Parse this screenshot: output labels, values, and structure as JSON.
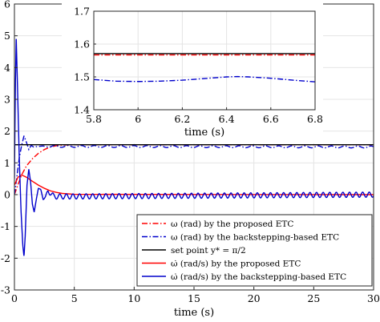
{
  "chart_data": [
    {
      "type": "line",
      "title": "",
      "xlabel": "time (s)",
      "ylabel": "",
      "xlim": [
        0,
        30
      ],
      "ylim": [
        -3,
        6
      ],
      "xticks": [
        0,
        5,
        10,
        15,
        20,
        25,
        30
      ],
      "yticks": [
        -3,
        -2,
        -1,
        0,
        1,
        2,
        3,
        4,
        5,
        6
      ],
      "grid": true,
      "legend_position": "bottom-right",
      "series": [
        {
          "name": "ω (rad) by the proposed ETC",
          "color": "#ff0000",
          "style": "dash-dot",
          "points": [
            [
              0,
              0
            ],
            [
              0.3,
              0.32
            ],
            [
              0.6,
              0.62
            ],
            [
              1.0,
              0.9
            ],
            [
              1.5,
              1.13
            ],
            [
              2,
              1.3
            ],
            [
              2.5,
              1.42
            ],
            [
              3,
              1.5
            ],
            [
              3.5,
              1.54
            ],
            [
              4,
              1.56
            ],
            [
              5,
              1.57
            ],
            [
              30,
              1.57
            ]
          ]
        },
        {
          "name": "ω (rad) by the backstepping-based ETC",
          "color": "#0000cc",
          "style": "dash-dot",
          "oscillation": {
            "amplitude": 0.03,
            "period": 1.1
          },
          "points": [
            [
              0,
              0
            ],
            [
              0.2,
              0.55
            ],
            [
              0.4,
              1.15
            ],
            [
              0.6,
              1.55
            ],
            [
              0.8,
              1.85
            ],
            [
              1.0,
              1.65
            ],
            [
              1.2,
              1.42
            ],
            [
              1.4,
              1.55
            ],
            [
              1.6,
              1.5
            ],
            [
              2,
              1.52
            ],
            [
              30,
              1.5
            ]
          ]
        },
        {
          "name": "set point",
          "color": "#000000",
          "style": "solid",
          "points": [
            [
              0,
              1.57
            ],
            [
              30,
              1.57
            ]
          ]
        },
        {
          "name": "ω̇ (rad/s) by the proposed ETC",
          "color": "#ff0000",
          "style": "solid",
          "points": [
            [
              0,
              0.3
            ],
            [
              0.3,
              0.55
            ],
            [
              0.6,
              0.62
            ],
            [
              1.0,
              0.55
            ],
            [
              1.5,
              0.42
            ],
            [
              2,
              0.3
            ],
            [
              2.5,
              0.2
            ],
            [
              3,
              0.12
            ],
            [
              3.5,
              0.07
            ],
            [
              4,
              0.04
            ],
            [
              5,
              0.01
            ],
            [
              30,
              0
            ]
          ]
        },
        {
          "name": "ω̇ (rad/s) by the backstepping-based ETC",
          "color": "#0000cc",
          "style": "solid",
          "oscillation": {
            "amplitude": 0.08,
            "period": 0.55
          },
          "points": [
            [
              0,
              0.5
            ],
            [
              0.08,
              3.5
            ],
            [
              0.15,
              4.9
            ],
            [
              0.25,
              3.5
            ],
            [
              0.4,
              1.2
            ],
            [
              0.55,
              -0.5
            ],
            [
              0.7,
              -1.6
            ],
            [
              0.8,
              -1.95
            ],
            [
              0.9,
              -1.3
            ],
            [
              1.05,
              0.3
            ],
            [
              1.2,
              0.8
            ],
            [
              1.35,
              0.4
            ],
            [
              1.5,
              -0.3
            ],
            [
              1.65,
              -0.55
            ],
            [
              1.85,
              -0.1
            ],
            [
              2.0,
              0.2
            ],
            [
              2.2,
              0.15
            ],
            [
              2.4,
              -0.12
            ],
            [
              2.6,
              -0.08
            ],
            [
              2.8,
              0.1
            ],
            [
              3.0,
              0.06
            ],
            [
              3.3,
              -0.06
            ],
            [
              30,
              0
            ]
          ]
        }
      ],
      "legend": [
        {
          "label": "ω (rad) by the proposed ETC",
          "color": "#ff0000",
          "style": "dash-dot"
        },
        {
          "label": "ω (rad) by the backstepping-based ETC",
          "color": "#0000cc",
          "style": "dash-dot"
        },
        {
          "label": "set point y* = π/2",
          "color": "#000000",
          "style": "solid"
        },
        {
          "label": "ω̇ (rad/s) by the proposed ETC",
          "color": "#ff0000",
          "style": "solid"
        },
        {
          "label": "ω̇ (rad/s) by the backstepping-based ETC",
          "color": "#0000cc",
          "style": "solid"
        }
      ]
    },
    {
      "type": "line",
      "title": "",
      "xlabel": "time (s)",
      "xlim": [
        5.8,
        6.8
      ],
      "ylim": [
        1.4,
        1.7
      ],
      "xticks": [
        5.8,
        6,
        6.2,
        6.4,
        6.6,
        6.8
      ],
      "xtick_labels": [
        "5.8",
        "6",
        "6.2",
        "6.4",
        "6.6",
        "6.8"
      ],
      "yticks": [
        1.4,
        1.5,
        1.6,
        1.7
      ],
      "ytick_labels": [
        "1.4",
        "1.5",
        "1.6",
        "1.7"
      ],
      "grid": true,
      "series": [
        {
          "color": "#ff0000",
          "style": "dash-dot",
          "points": [
            [
              5.8,
              1.567
            ],
            [
              6.8,
              1.567
            ]
          ]
        },
        {
          "color": "#000000",
          "style": "solid",
          "points": [
            [
              5.8,
              1.571
            ],
            [
              6.8,
              1.571
            ]
          ]
        },
        {
          "color": "#0000cc",
          "style": "dash-dot",
          "points": [
            [
              5.8,
              1.492
            ],
            [
              5.9,
              1.487
            ],
            [
              6.0,
              1.486
            ],
            [
              6.1,
              1.487
            ],
            [
              6.2,
              1.49
            ],
            [
              6.3,
              1.495
            ],
            [
              6.4,
              1.5
            ],
            [
              6.45,
              1.501
            ],
            [
              6.5,
              1.5
            ],
            [
              6.6,
              1.496
            ],
            [
              6.7,
              1.49
            ],
            [
              6.8,
              1.485
            ]
          ]
        }
      ]
    }
  ]
}
